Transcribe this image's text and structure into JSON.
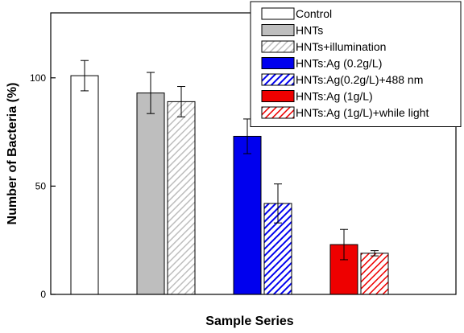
{
  "chart_data": {
    "type": "bar",
    "title": "",
    "xlabel": "Sample Series",
    "ylabel": "Number of Bacteria (%)",
    "ylim": [
      0,
      130
    ],
    "yticks": [
      0,
      50,
      100
    ],
    "grid": false,
    "legend_position": "top-right",
    "series": [
      {
        "name": "Control",
        "value": 101,
        "error": 7,
        "color": "#ffffff",
        "hatched": false,
        "group": 1
      },
      {
        "name": "HNTs",
        "value": 93,
        "error": 9.5,
        "color": "#bebebe",
        "hatched": false,
        "group": 2
      },
      {
        "name": "HNTs+illumination",
        "value": 89,
        "error": 7,
        "color": "#bebebe",
        "hatched": true,
        "group": 2
      },
      {
        "name": "HNTs:Ag (0.2g/L)",
        "value": 73,
        "error": 8,
        "color": "#0000ee",
        "hatched": false,
        "group": 3
      },
      {
        "name": "HNTs:Ag(0.2g/L)+488 nm",
        "value": 42,
        "error": 9,
        "color": "#0000ee",
        "hatched": true,
        "group": 3
      },
      {
        "name": "HNTs:Ag (1g/L)",
        "value": 23,
        "error": 7,
        "color": "#ee0000",
        "hatched": false,
        "group": 4
      },
      {
        "name": "HNTs:Ag (1g/L)+while light",
        "value": 19,
        "error": 1.2,
        "color": "#ee0000",
        "hatched": true,
        "group": 4
      }
    ]
  }
}
